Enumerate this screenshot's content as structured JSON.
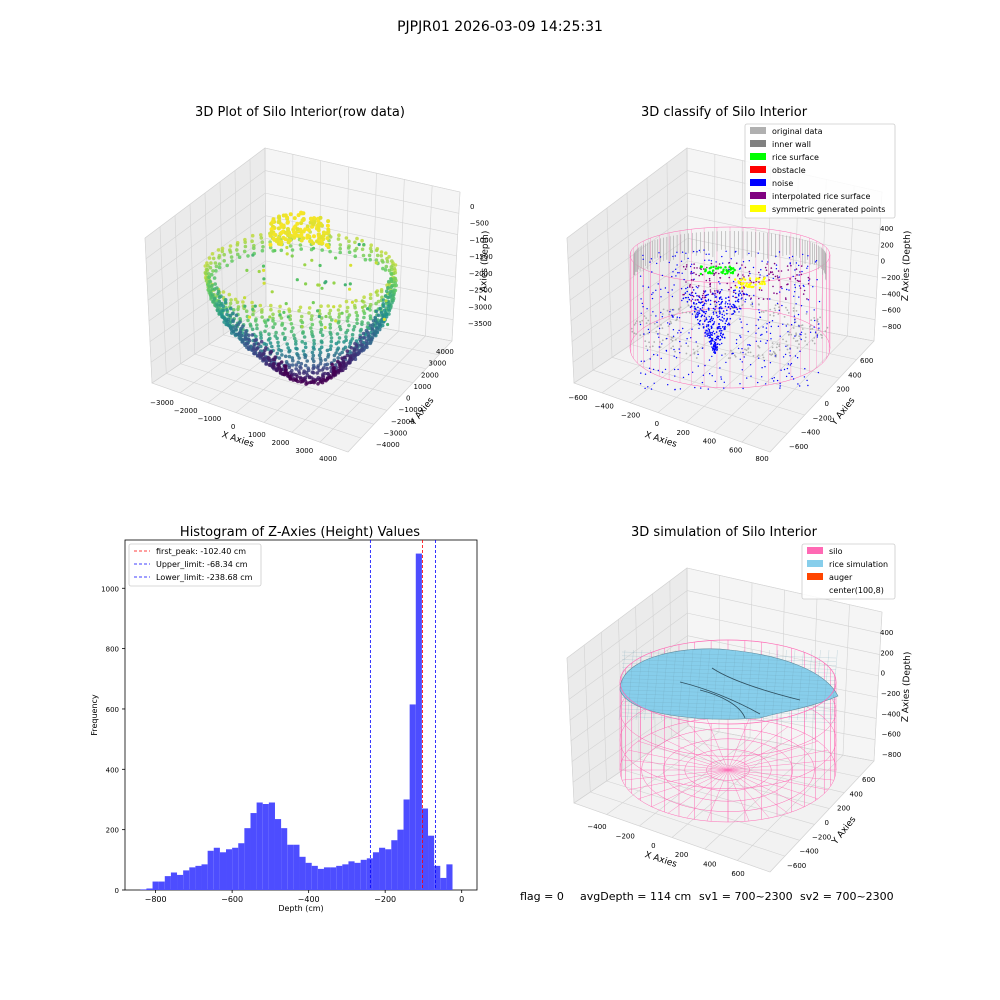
{
  "figure": {
    "suptitle": "PJPJR01 2026-03-09 14:25:31",
    "status_line": {
      "flag": "flag = 0",
      "avg_depth": "avgDepth = 114 cm",
      "sv1": "sv1 = 700~2300",
      "sv2": "sv2 = 700~2300"
    }
  },
  "colors": {
    "gray_light": "#b0b0b0",
    "gray_dark": "#808080",
    "green": "#00ff00",
    "red": "#ff0000",
    "blue": "#0000ff",
    "purple": "#800080",
    "yellow": "#ffff00",
    "pink": "#ff69b4",
    "skyblue": "#87ceeb",
    "orangered": "#ff4500",
    "hist_fill": "#4d4dff",
    "peak_line": "#ff0000",
    "limit_line": "#0000ff"
  },
  "chart_data": [
    {
      "type": "scatter",
      "projection": "3d",
      "title": "3D Plot of Silo Interior(row data)",
      "xlabel": "X Axies",
      "ylabel": "Y Axies",
      "zlabel": "Z Axies (Depth)",
      "x_ticks": [
        "−3000",
        "−2000",
        "−1000",
        "0",
        "1000",
        "2000",
        "3000",
        "4000"
      ],
      "y_ticks": [
        "4000",
        "3000",
        "2000",
        "1000",
        "0",
        "−1000",
        "−2000",
        "−3000",
        "−4000"
      ],
      "z_ticks": [
        "0",
        "−500",
        "−1000",
        "−1500",
        "−2000",
        "−2500",
        "−3000",
        "−3500"
      ],
      "xlim": [
        -3500,
        4500
      ],
      "ylim": [
        -4500,
        4500
      ],
      "zlim": [
        -3900,
        100
      ],
      "colormap": "viridis"
    },
    {
      "type": "scatter",
      "projection": "3d",
      "title": "3D classify of Silo Interior",
      "xlabel": "X Axies",
      "ylabel": "Y Axies",
      "zlabel": "Z Axies (Depth)",
      "x_ticks": [
        "−600",
        "−400",
        "−200",
        "0",
        "200",
        "400",
        "600",
        "800"
      ],
      "y_ticks": [
        "600",
        "400",
        "200",
        "0",
        "−200",
        "−400",
        "−600"
      ],
      "z_ticks": [
        "400",
        "200",
        "0",
        "−200",
        "−400",
        "−600",
        "−800"
      ],
      "legend_position": "top-right",
      "legend": [
        {
          "label": "original data",
          "color": "#b0b0b0"
        },
        {
          "label": "inner wall",
          "color": "#808080"
        },
        {
          "label": "rice surface",
          "color": "#00ff00"
        },
        {
          "label": "obstacle",
          "color": "#ff0000"
        },
        {
          "label": "noise",
          "color": "#0000ff"
        },
        {
          "label": "interpolated rice surface",
          "color": "#800080"
        },
        {
          "label": "symmetric generated points",
          "color": "#ffff00"
        }
      ]
    },
    {
      "type": "bar",
      "title": "Histogram of Z-Axies (Height) Values",
      "xlabel": "Depth (cm)",
      "ylabel": "Frequency",
      "xlim": [
        -880,
        40
      ],
      "ylim": [
        0,
        1160
      ],
      "x_ticks": [
        -800,
        -600,
        -400,
        -200,
        0
      ],
      "x_tick_labels": [
        "−800",
        "−600",
        "−400",
        "−200",
        "0"
      ],
      "y_ticks": [
        0,
        200,
        400,
        600,
        800,
        1000
      ],
      "y_tick_labels": [
        "0",
        "200",
        "400",
        "600",
        "800",
        "1000"
      ],
      "grid": false,
      "legend_position": "top-left",
      "bin_start": -840,
      "bin_width": 16,
      "values": [
        2,
        5,
        28,
        28,
        46,
        58,
        50,
        65,
        75,
        80,
        85,
        130,
        140,
        125,
        135,
        140,
        155,
        205,
        255,
        290,
        285,
        290,
        235,
        205,
        150,
        150,
        110,
        90,
        80,
        70,
        75,
        75,
        80,
        85,
        95,
        90,
        100,
        105,
        125,
        140,
        135,
        165,
        200,
        300,
        615,
        1115,
        270,
        180,
        80,
        40,
        85
      ],
      "vlines": [
        {
          "label": "first_peak: -102.40 cm",
          "x": -102.4,
          "color": "#ff0000"
        },
        {
          "label": "Upper_limit: -68.34 cm",
          "x": -68.34,
          "color": "#0000ff"
        },
        {
          "label": "Lower_limit: -238.68 cm",
          "x": -238.68,
          "color": "#0000ff"
        }
      ]
    },
    {
      "type": "area",
      "projection": "3d",
      "title": "3D simulation of Silo Interior",
      "xlabel": "X Axies",
      "ylabel": "Y Axies",
      "zlabel": "Z Axies (Depth)",
      "x_ticks": [
        "−400",
        "−200",
        "0",
        "200",
        "400",
        "600"
      ],
      "y_ticks": [
        "600",
        "400",
        "200",
        "0",
        "−200",
        "−400",
        "−600"
      ],
      "z_ticks": [
        "400",
        "200",
        "0",
        "−200",
        "−400",
        "−600",
        "−800"
      ],
      "legend_position": "top-right",
      "legend": [
        {
          "label": "silo",
          "color": "#ff69b4"
        },
        {
          "label": "rice simulation",
          "color": "#87ceeb"
        },
        {
          "label": "auger",
          "color": "#ff4500"
        },
        {
          "label": "center(100,8)",
          "color": "#ffffff"
        }
      ]
    }
  ]
}
